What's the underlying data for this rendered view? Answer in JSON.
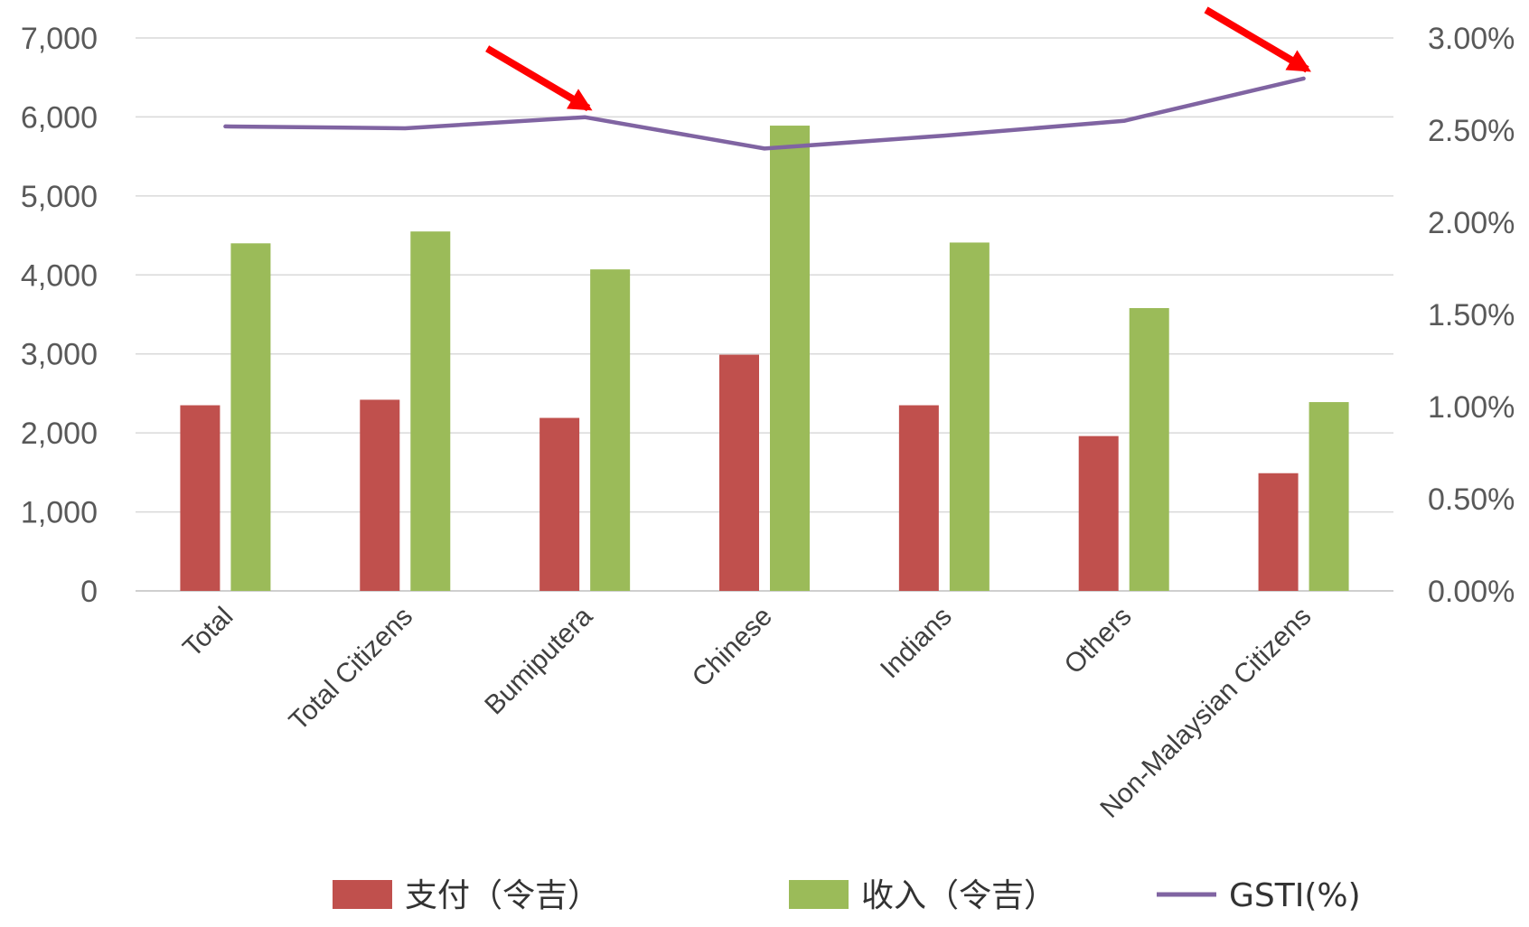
{
  "chart_data": {
    "type": "bar",
    "categories": [
      "Total",
      "Total Citizens",
      "Bumiputera",
      "Chinese",
      "Indians",
      "Others",
      "Non-Malaysian Citizens"
    ],
    "series": [
      {
        "name": "支付（令吉）",
        "kind": "bar",
        "axis": "left",
        "color": "#C0504D",
        "values": [
          2350,
          2420,
          2190,
          2990,
          2350,
          1960,
          1490
        ]
      },
      {
        "name": "收入（令吉）",
        "kind": "bar",
        "axis": "left",
        "color": "#9BBB59",
        "values": [
          4400,
          4550,
          4070,
          5890,
          4410,
          3580,
          2390
        ]
      },
      {
        "name": "GSTI(%)",
        "kind": "line",
        "axis": "right",
        "color": "#8064A2",
        "values": [
          0.0252,
          0.0251,
          0.0257,
          0.024,
          0.0247,
          0.0255,
          0.0278
        ]
      }
    ],
    "y_left": {
      "ylim": [
        0,
        7000
      ],
      "ticks": [
        "0",
        "1,000",
        "2,000",
        "3,000",
        "4,000",
        "5,000",
        "6,000",
        "7,000"
      ]
    },
    "y_right": {
      "ylim": [
        0,
        0.03
      ],
      "ticks": [
        "0.00%",
        "0.50%",
        "1.00%",
        "1.50%",
        "2.00%",
        "2.50%",
        "3.00%"
      ]
    },
    "grid": true,
    "legend": "bottom",
    "annotations": [
      {
        "type": "arrow",
        "color": "#FF0000",
        "points_to": "Bumiputera"
      },
      {
        "type": "arrow",
        "color": "#FF0000",
        "points_to": "Non-Malaysian Citizens"
      }
    ]
  }
}
